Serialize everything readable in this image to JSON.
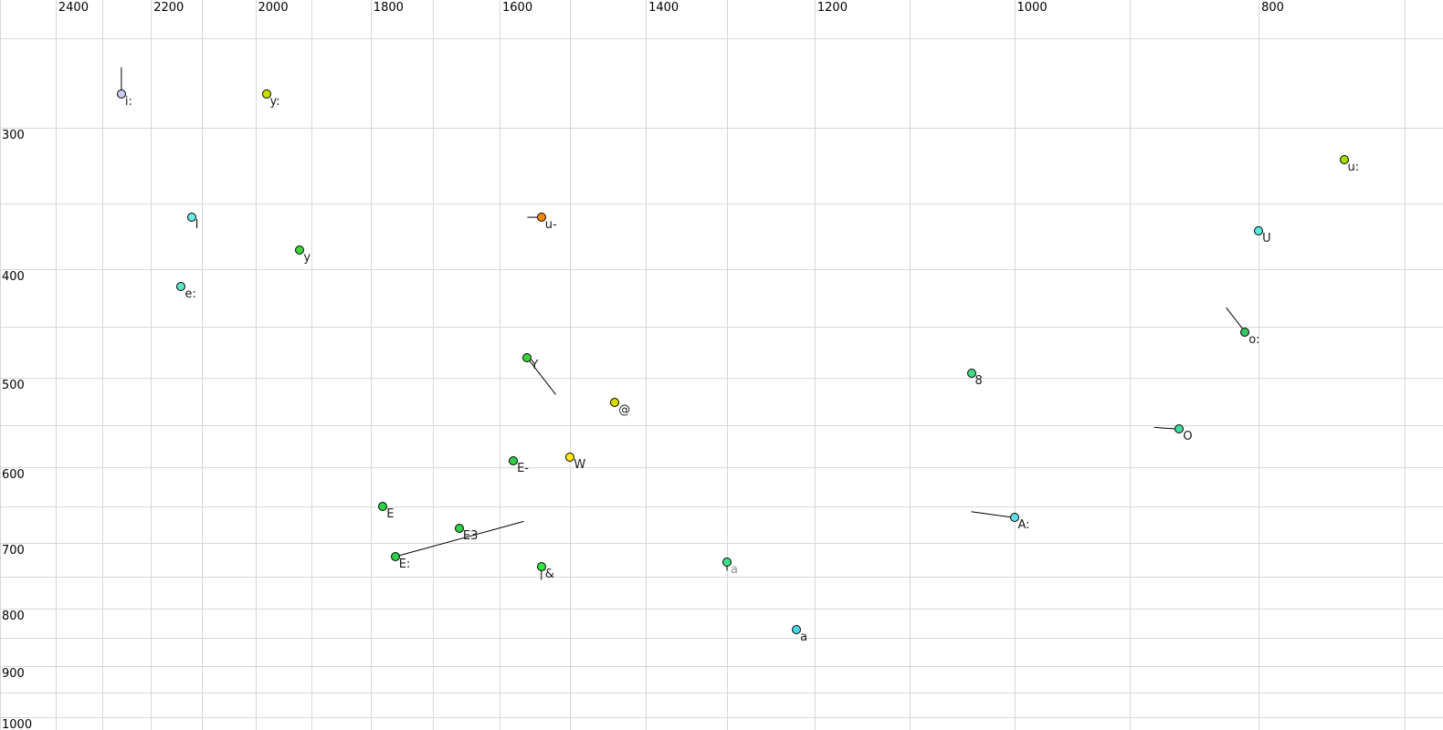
{
  "chart_data": {
    "type": "scatter",
    "title": "",
    "x_axis": {
      "scale": "log",
      "reversed": true,
      "tick_labels": [
        "2400",
        "2200",
        "2000",
        "1800",
        "1600",
        "1400",
        "1200",
        "1000",
        "800"
      ],
      "tick_values": [
        2400,
        2200,
        2000,
        1800,
        1600,
        1400,
        1200,
        1000,
        800
      ],
      "gridline_step": 100,
      "gridline_min": 700,
      "gridline_max": 2400,
      "view_range": [
        2525,
        676
      ]
    },
    "y_axis": {
      "scale": "log",
      "reversed": false,
      "tick_labels": [
        "300",
        "400",
        "500",
        "600",
        "700",
        "800",
        "900",
        "1000"
      ],
      "tick_values": [
        300,
        400,
        500,
        600,
        700,
        800,
        900,
        1000
      ],
      "gridline_step": 50,
      "gridline_min": 250,
      "gridline_max": 1000,
      "view_range": [
        231,
        1026
      ]
    },
    "grid_color": "#d7d7d7",
    "point_border_color": "#000000",
    "tail_line_color": "#000000",
    "label_color": "#1a1a1a",
    "points": [
      {
        "label": "i:",
        "f2": 2260,
        "f1": 280,
        "fill": "#ccccf0",
        "tail": {
          "f2": 2260,
          "f1": 265
        }
      },
      {
        "label": "y:",
        "f2": 1980,
        "f1": 280,
        "fill": "#cce000"
      },
      {
        "label": "I",
        "f2": 2120,
        "f1": 360,
        "fill": "#70e8e4"
      },
      {
        "label": "y",
        "f2": 1920,
        "f1": 385,
        "fill": "#3cd43c"
      },
      {
        "label": "e:",
        "f2": 2140,
        "f1": 415,
        "fill": "#5ce8c8"
      },
      {
        "label": "u-",
        "f2": 1540,
        "f1": 360,
        "fill": "#ff8c00",
        "tail": {
          "f2": 1560,
          "f1": 360
        }
      },
      {
        "label": "Y",
        "f2": 1560,
        "f1": 480,
        "fill": "#3cd43c",
        "tail": {
          "f2": 1520,
          "f1": 517
        }
      },
      {
        "label": "@",
        "f2": 1440,
        "f1": 525,
        "fill": "#d8dc00"
      },
      {
        "label": "E-",
        "f2": 1580,
        "f1": 592,
        "fill": "#2ed048"
      },
      {
        "label": "W",
        "f2": 1500,
        "f1": 588,
        "fill": "#ffec00"
      },
      {
        "label": "E",
        "f2": 1780,
        "f1": 650,
        "fill": "#2ed048"
      },
      {
        "label": "E3",
        "f2": 1660,
        "f1": 680,
        "fill": "#2ed048"
      },
      {
        "label": "E:",
        "f2": 1760,
        "f1": 720,
        "fill": "#2ed048",
        "tail": {
          "f2": 1565,
          "f1": 670
        }
      },
      {
        "label": "&",
        "f2": 1540,
        "f1": 735,
        "fill": "#30e83c",
        "tail": {
          "f2": 1540,
          "f1": 755
        }
      },
      {
        "label": "a",
        "f2": 1300,
        "f1": 728,
        "fill": "#40e088",
        "label_color": "#909090",
        "tail": {
          "f2": 1300,
          "f1": 741
        }
      },
      {
        "label": "a",
        "f2": 1220,
        "f1": 835,
        "fill": "#48d8e8"
      },
      {
        "label": "A:",
        "f2": 1000,
        "f1": 665,
        "fill": "#60dce8",
        "tail": {
          "f2": 1040,
          "f1": 657
        }
      },
      {
        "label": "8",
        "f2": 1040,
        "f1": 495,
        "fill": "#40dc86"
      },
      {
        "label": "O",
        "f2": 860,
        "f1": 555,
        "fill": "#40dca0",
        "tail": {
          "f2": 880,
          "f1": 553
        }
      },
      {
        "label": "o:",
        "f2": 810,
        "f1": 455,
        "fill": "#30c860",
        "tail": {
          "f2": 824,
          "f1": 433
        }
      },
      {
        "label": "U",
        "f2": 800,
        "f1": 370,
        "fill": "#5ce8dc"
      },
      {
        "label": "u:",
        "f2": 740,
        "f1": 320,
        "fill": "#aadc00"
      }
    ]
  }
}
